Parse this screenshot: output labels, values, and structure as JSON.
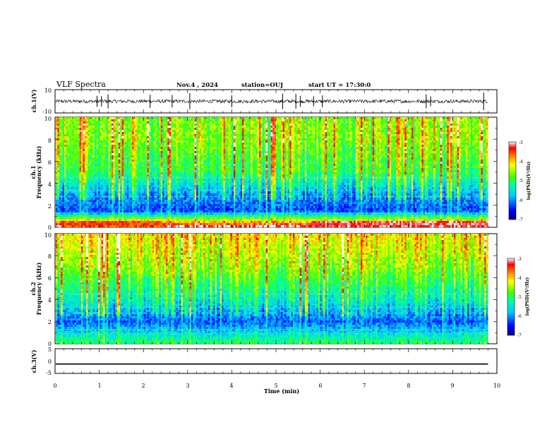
{
  "header": {
    "title": "VLF Spectra",
    "date": "Nov.4 , 2024",
    "station": "station=OUJ",
    "start": "start UT = 17:30:0"
  },
  "chart_data": [
    {
      "type": "line",
      "panel": "ch1-waveform",
      "ylabel": "ch.1(V)",
      "ylim": [
        -10,
        10
      ],
      "yticks": [
        "10",
        "-10"
      ],
      "baseline_v": 0,
      "typical_amplitude_v": 1.5,
      "spike_amplitude_v": 8
    },
    {
      "type": "heatmap",
      "panel": "ch1-spectrogram",
      "ylabel": "Frequency (kHz)",
      "channel_label": "ch.1",
      "ylim": [
        0,
        10
      ],
      "yticks": [
        "0",
        "2",
        "4",
        "6",
        "8",
        "10"
      ],
      "xlim": [
        0,
        9.8
      ],
      "colorbar": {
        "label": "log(PSD)(V²/Hz)",
        "range": [
          -7,
          -3
        ],
        "ticks": [
          "-3",
          "-4",
          "-5",
          "-6",
          "-7"
        ]
      },
      "typical_log_psd": [
        {
          "freq_khz": 0.3,
          "value": -3.6
        },
        {
          "freq_khz": 1.5,
          "value": -6.3
        },
        {
          "freq_khz": 3.0,
          "value": -5.9
        },
        {
          "freq_khz": 5.0,
          "value": -5.0
        },
        {
          "freq_khz": 8.0,
          "value": -4.6
        }
      ]
    },
    {
      "type": "heatmap",
      "panel": "ch2-spectrogram",
      "ylabel": "Frequency (kHz)",
      "channel_label": "ch.2",
      "ylim": [
        0,
        10
      ],
      "yticks": [
        "0",
        "2",
        "4",
        "6",
        "8",
        "10"
      ],
      "xlim": [
        0,
        9.8
      ],
      "colorbar": {
        "label": "log(PSD)(V²/Hz)",
        "range": [
          -7,
          -3
        ],
        "ticks": [
          "-3",
          "-4",
          "-5",
          "-6",
          "-7"
        ]
      },
      "typical_log_psd": [
        {
          "freq_khz": 0.3,
          "value": -5.2
        },
        {
          "freq_khz": 2.0,
          "value": -6.2
        },
        {
          "freq_khz": 4.0,
          "value": -5.4
        },
        {
          "freq_khz": 7.0,
          "value": -4.6
        },
        {
          "freq_khz": 9.5,
          "value": -4.2
        }
      ]
    },
    {
      "type": "line",
      "panel": "ch3-waveform",
      "ylabel": "ch.3(V)",
      "ylim": [
        -5,
        5
      ],
      "yticks": [
        "5",
        "0",
        "-5"
      ],
      "constant_value_v": -1.2
    }
  ],
  "xaxis": {
    "label": "Time (min)",
    "range": [
      0,
      10
    ],
    "ticks": [
      "0",
      "1",
      "2",
      "3",
      "4",
      "5",
      "6",
      "7",
      "8",
      "9",
      "10"
    ]
  }
}
